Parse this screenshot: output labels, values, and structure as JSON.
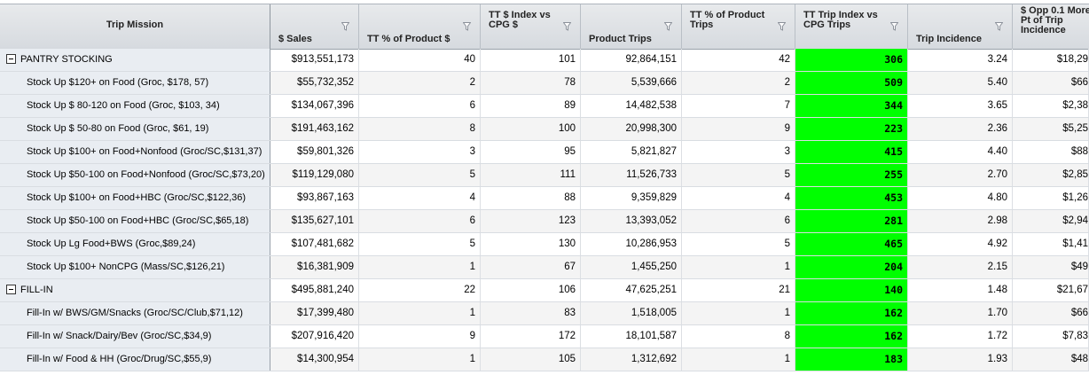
{
  "columns": [
    {
      "label": "Trip Mission"
    },
    {
      "label": "$ Sales"
    },
    {
      "label": "TT % of Product $"
    },
    {
      "label": "TT $ Index vs CPG $"
    },
    {
      "label": "Product Trips"
    },
    {
      "label": "TT % of Product Trips"
    },
    {
      "label": "TT Trip Index vs CPG Trips"
    },
    {
      "label": "Trip Incidence"
    },
    {
      "label": "$ Opp 0.1 More Pt of Trip Incidence"
    }
  ],
  "highlight_color": "#00ff00",
  "rows": [
    {
      "type": "group",
      "name": "PANTRY STOCKING",
      "sales": "$913,551,173",
      "pct_product": "40",
      "index_cpg": "101",
      "trips": "92,864,151",
      "pct_trips": "42",
      "trip_index": "306",
      "incidence": "3.24",
      "opp": "$18,29"
    },
    {
      "type": "item",
      "name": "Stock Up $120+ on Food (Groc, $178, 57)",
      "sales": "$55,732,352",
      "pct_product": "2",
      "index_cpg": "78",
      "trips": "5,539,666",
      "pct_trips": "2",
      "trip_index": "509",
      "incidence": "5.40",
      "opp": "$66"
    },
    {
      "type": "item",
      "name": "Stock Up $ 80-120 on Food (Groc, $103, 34)",
      "sales": "$134,067,396",
      "pct_product": "6",
      "index_cpg": "89",
      "trips": "14,482,538",
      "pct_trips": "7",
      "trip_index": "344",
      "incidence": "3.65",
      "opp": "$2,38"
    },
    {
      "type": "item",
      "name": "Stock Up $ 50-80 on Food (Groc, $61, 19)",
      "sales": "$191,463,162",
      "pct_product": "8",
      "index_cpg": "100",
      "trips": "20,998,300",
      "pct_trips": "9",
      "trip_index": "223",
      "incidence": "2.36",
      "opp": "$5,25"
    },
    {
      "type": "item",
      "name": "Stock Up $100+ on Food+Nonfood (Groc/SC,$131,37)",
      "sales": "$59,801,326",
      "pct_product": "3",
      "index_cpg": "95",
      "trips": "5,821,827",
      "pct_trips": "3",
      "trip_index": "415",
      "incidence": "4.40",
      "opp": "$88"
    },
    {
      "type": "item",
      "name": "Stock Up $50-100 on Food+Nonfood (Groc/SC,$73,20)",
      "sales": "$119,129,080",
      "pct_product": "5",
      "index_cpg": "111",
      "trips": "11,526,733",
      "pct_trips": "5",
      "trip_index": "255",
      "incidence": "2.70",
      "opp": "$2,85"
    },
    {
      "type": "item",
      "name": "Stock Up $100+ on Food+HBC (Groc/SC,$122,36)",
      "sales": "$93,867,163",
      "pct_product": "4",
      "index_cpg": "88",
      "trips": "9,359,829",
      "pct_trips": "4",
      "trip_index": "453",
      "incidence": "4.80",
      "opp": "$1,26"
    },
    {
      "type": "item",
      "name": "Stock Up $50-100 on Food+HBC (Groc/SC,$65,18)",
      "sales": "$135,627,101",
      "pct_product": "6",
      "index_cpg": "123",
      "trips": "13,393,052",
      "pct_trips": "6",
      "trip_index": "281",
      "incidence": "2.98",
      "opp": "$2,94"
    },
    {
      "type": "item",
      "name": "Stock Up Lg Food+BWS (Groc,$89,24)",
      "sales": "$107,481,682",
      "pct_product": "5",
      "index_cpg": "130",
      "trips": "10,286,953",
      "pct_trips": "5",
      "trip_index": "465",
      "incidence": "4.92",
      "opp": "$1,41"
    },
    {
      "type": "item",
      "name": "Stock Up $100+ NonCPG (Mass/SC,$126,21)",
      "sales": "$16,381,909",
      "pct_product": "1",
      "index_cpg": "67",
      "trips": "1,455,250",
      "pct_trips": "1",
      "trip_index": "204",
      "incidence": "2.15",
      "opp": "$49"
    },
    {
      "type": "group",
      "name": "FILL-IN",
      "sales": "$495,881,240",
      "pct_product": "22",
      "index_cpg": "106",
      "trips": "47,625,251",
      "pct_trips": "21",
      "trip_index": "140",
      "incidence": "1.48",
      "opp": "$21,67"
    },
    {
      "type": "item",
      "name": "Fill-In w/ BWS/GM/Snacks (Groc/SC/Club,$71,12)",
      "sales": "$17,399,480",
      "pct_product": "1",
      "index_cpg": "83",
      "trips": "1,518,005",
      "pct_trips": "1",
      "trip_index": "162",
      "incidence": "1.70",
      "opp": "$66"
    },
    {
      "type": "item",
      "name": "Fill-In w/ Snack/Dairy/Bev (Groc/SC,$34,9)",
      "sales": "$207,916,420",
      "pct_product": "9",
      "index_cpg": "172",
      "trips": "18,101,587",
      "pct_trips": "8",
      "trip_index": "162",
      "incidence": "1.72",
      "opp": "$7,83"
    },
    {
      "type": "item",
      "name": "Fill-In w/ Food & HH (Groc/Drug/SC,$55,9)",
      "sales": "$14,300,954",
      "pct_product": "1",
      "index_cpg": "105",
      "trips": "1,312,692",
      "pct_trips": "1",
      "trip_index": "183",
      "incidence": "1.93",
      "opp": "$48"
    }
  ]
}
